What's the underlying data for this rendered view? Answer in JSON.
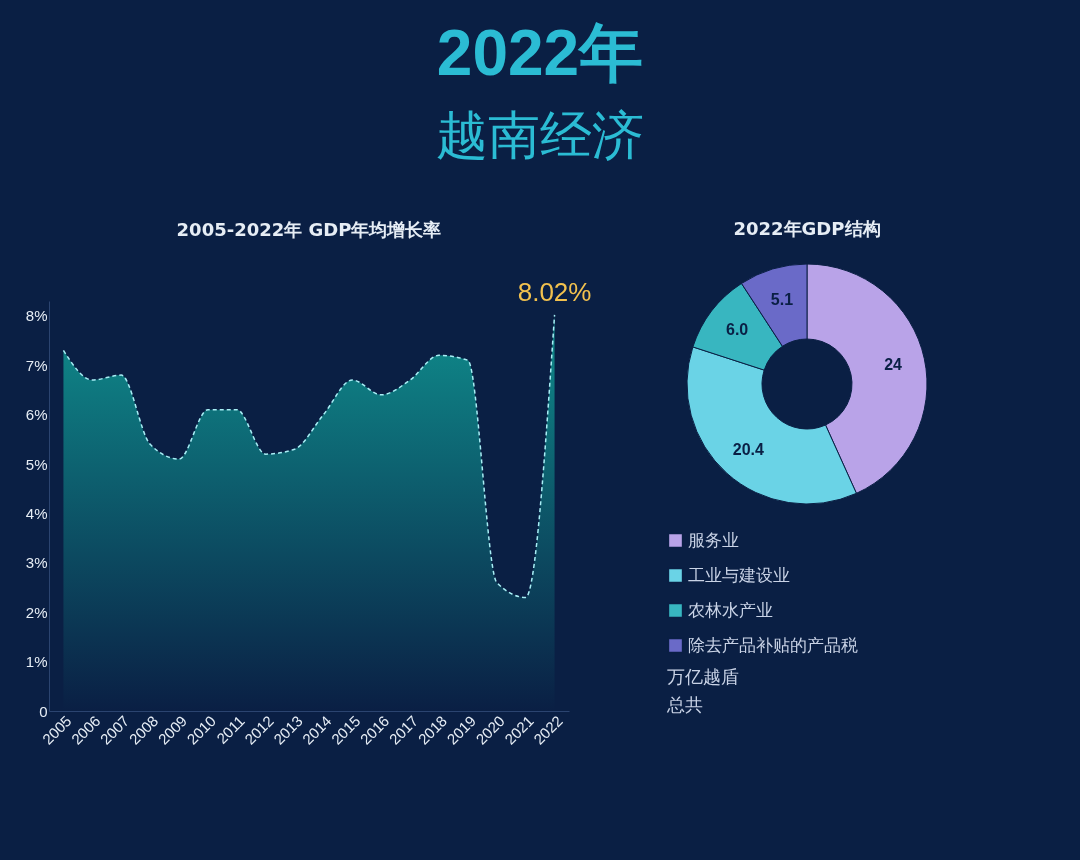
{
  "chart_data": [
    {
      "type": "other",
      "title": "2022年",
      "subtitle": "越南经济"
    },
    {
      "type": "area",
      "title": "2005-2022年 GDP年均增长率",
      "categories": [
        "2005",
        "2006",
        "2007",
        "2008",
        "2009",
        "2010",
        "2011",
        "2012",
        "2013",
        "2014",
        "2015",
        "2016",
        "2017",
        "2018",
        "2019",
        "2020",
        "2021",
        "2022"
      ],
      "series": [
        {
          "color": "#0f8c8c",
          "values": [
            7.3,
            6.7,
            6.8,
            5.4,
            5.1,
            6.1,
            6.1,
            5.2,
            5.3,
            6.0,
            6.7,
            6.4,
            6.7,
            7.2,
            7.1,
            2.6,
            2.3,
            8.02
          ],
          "value_labels": [
            null,
            null,
            null,
            null,
            null,
            null,
            null,
            null,
            null,
            null,
            null,
            null,
            null,
            null,
            null,
            null,
            null,
            "8.02%"
          ]
        }
      ],
      "ylim": [
        0,
        8.3
      ],
      "yticks": [
        0,
        {
          "value": 1,
          "label": "1%"
        },
        {
          "value": 2,
          "label": "2%"
        },
        {
          "value": 3,
          "label": "3%"
        },
        {
          "value": 4,
          "label": "4%"
        },
        {
          "value": 5,
          "label": "5%"
        },
        {
          "value": 6,
          "label": "6%"
        },
        {
          "value": 7,
          "label": "7%"
        },
        {
          "value": 8,
          "label": "8%"
        }
      ],
      "line_style": "dashed",
      "grid": false
    },
    {
      "type": "donut",
      "title": "2022年GDP结构",
      "categories": [
        "服务业",
        "工业与建设业",
        "农林水产业",
        "除去产品补贴的产品税"
      ],
      "values": [
        24,
        20.4,
        6.0,
        5.1
      ],
      "value_labels": [
        "24",
        "20.4",
        "6.0",
        "5.1"
      ],
      "colors": [
        "#b9a3e8",
        "#6ad3e6",
        "#38b6c0",
        "#6a6ac8"
      ],
      "legend": "bottom",
      "annotations": [
        "万亿越盾",
        "总共"
      ]
    }
  ]
}
